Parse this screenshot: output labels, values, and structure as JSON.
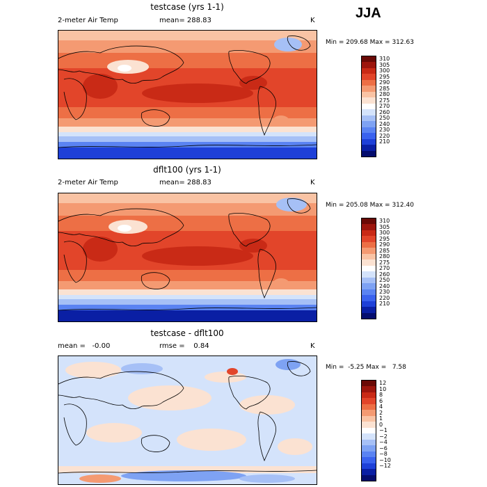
{
  "season": "JJA",
  "colors": {
    "temp_scale": [
      "#050d6e",
      "#0a1fa4",
      "#1e40d8",
      "#3a62ee",
      "#5a83f2",
      "#7ea2f3",
      "#a6c0f6",
      "#d4e3fb",
      "#ffffff",
      "#fbe2d2",
      "#f9c3a4",
      "#f49a72",
      "#ed6f45",
      "#e2452a",
      "#c92a16",
      "#9d160d",
      "#6a0a06"
    ],
    "diff_scale": [
      "#050d6e",
      "#0a1fa4",
      "#1e40d8",
      "#3a62ee",
      "#5a83f2",
      "#7ea2f3",
      "#a6c0f6",
      "#d4e3fb",
      "#ffffff",
      "#fbe2d2",
      "#f9c3a4",
      "#f49a72",
      "#ed6f45",
      "#e2452a",
      "#c92a16",
      "#9d160d",
      "#6a0a06"
    ]
  },
  "panels": [
    {
      "title": "testcase (yrs 1-1)",
      "left_label": "2-meter Air Temp",
      "center_label": "mean= 288.83",
      "units": "K",
      "minmax": "Min = 209.68 Max = 312.63",
      "ticks": [
        "310",
        "305",
        "300",
        "295",
        "290",
        "285",
        "280",
        "275",
        "270",
        "260",
        "250",
        "240",
        "230",
        "220",
        "210"
      ],
      "field_type": "temperature",
      "min": 209.68,
      "max": 312.63
    },
    {
      "title": "dflt100 (yrs 1-1)",
      "left_label": "2-meter Air Temp",
      "center_label": "mean= 288.83",
      "units": "K",
      "minmax": "Min = 205.08 Max = 312.40",
      "ticks": [
        "310",
        "305",
        "300",
        "295",
        "290",
        "285",
        "280",
        "275",
        "270",
        "260",
        "250",
        "240",
        "230",
        "220",
        "210"
      ],
      "field_type": "temperature",
      "min": 205.08,
      "max": 312.4
    },
    {
      "title": "testcase - dflt100",
      "left_label": "mean =   -0.00",
      "center_label": "rmse =    0.84",
      "units": "K",
      "minmax": "Min =  -5.25 Max =   7.58",
      "ticks": [
        "12",
        "10",
        "8",
        "6",
        "4",
        "2",
        "1",
        "0",
        "−1",
        "−2",
        "−4",
        "−6",
        "−8",
        "−10",
        "−12"
      ],
      "field_type": "difference",
      "min": -5.25,
      "max": 7.58
    }
  ]
}
